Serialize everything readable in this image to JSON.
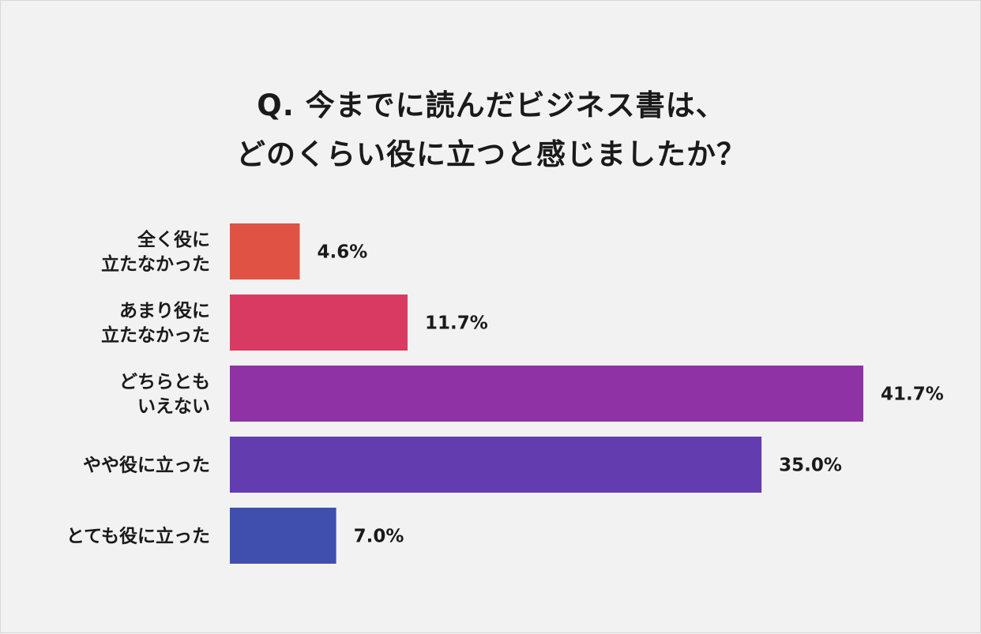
{
  "title_lines": [
    "Q. 今までに読んだビジネス書は、",
    "どのくらい役に立つと感じましたか？"
  ],
  "chart_data": {
    "type": "bar",
    "orientation": "horizontal",
    "title": "Q. 今までに読んだビジネス書は、どのくらい役に立つと感じましたか？",
    "categories": [
      [
        "全く役に",
        "立たなかった"
      ],
      [
        "あまり役に",
        "立たなかった"
      ],
      [
        "どちらとも",
        "いえない"
      ],
      [
        "やや役に立った"
      ],
      [
        "とても役に立った"
      ]
    ],
    "values": [
      4.6,
      11.7,
      41.7,
      35.0,
      7.0
    ],
    "value_labels": [
      "4.6%",
      "11.7%",
      "41.7%",
      "35.0%",
      "7.0%"
    ],
    "colors": [
      "#e05244",
      "#d83a61",
      "#8f32a6",
      "#633cb0",
      "#404fae"
    ],
    "xlim": [
      0,
      42
    ],
    "grid": false,
    "legend": "none"
  }
}
